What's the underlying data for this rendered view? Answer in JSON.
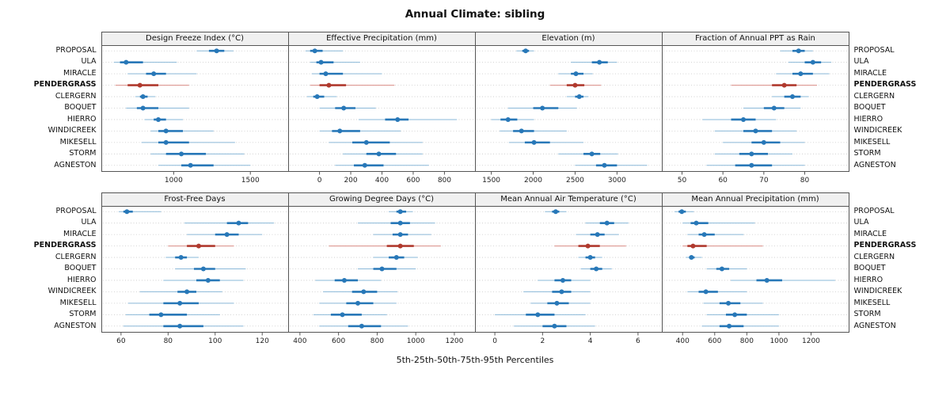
{
  "chart_data": {
    "type": "scatter",
    "subtype": "dotplot-percentile-intervals",
    "title": "Annual Climate: sibling",
    "caption": "5th-25th-50th-75th-95th Percentiles",
    "percentiles": [
      5,
      25,
      50,
      75,
      95
    ],
    "sites": [
      "PROPOSAL",
      "ULA",
      "MIRACLE",
      "PENDERGRASS",
      "CLERGERN",
      "BOQUET",
      "HIERRO",
      "WINDICREEK",
      "MIKESELL",
      "STORM",
      "AGNESTON"
    ],
    "highlighted_site": "PENDERGRASS",
    "layout": {
      "rows": 2,
      "cols": 4,
      "grid": "dotted-horizontal",
      "ylabels": "both-sides"
    },
    "colors": {
      "median_dot": "#2878b8",
      "iqr_line": "#2878b8",
      "range_line": "#8ab8d8",
      "highlight_dot": "#b03a2e",
      "highlight_iqr": "#b03a2e",
      "highlight_range": "#d98b84",
      "panel_border": "#555555",
      "strip_bg": "#f0f0f0",
      "gridline": "#c8c8c8"
    },
    "panels": [
      {
        "title": "Design Freeze Index (°C)",
        "row": 0,
        "xlim": [
          580,
          1700
        ],
        "ticks": [
          1000,
          1500
        ],
        "values": [
          [
            1150,
            1230,
            1280,
            1330,
            1390
          ],
          [
            610,
            650,
            690,
            800,
            1020
          ],
          [
            700,
            820,
            870,
            950,
            1150
          ],
          [
            620,
            700,
            780,
            900,
            1100
          ],
          [
            750,
            780,
            800,
            830,
            880
          ],
          [
            690,
            760,
            800,
            900,
            1100
          ],
          [
            810,
            870,
            900,
            950,
            1060
          ],
          [
            850,
            900,
            950,
            1060,
            1260
          ],
          [
            790,
            900,
            950,
            1100,
            1400
          ],
          [
            850,
            950,
            1050,
            1210,
            1460
          ],
          [
            900,
            1050,
            1110,
            1260,
            1500
          ]
        ]
      },
      {
        "title": "Effective Precipitation (mm)",
        "row": 0,
        "xlim": [
          -150,
          950
        ],
        "ticks": [
          0,
          200,
          400,
          600,
          800
        ],
        "values": [
          [
            -90,
            -60,
            -30,
            20,
            150
          ],
          [
            -60,
            -20,
            10,
            90,
            260
          ],
          [
            -50,
            0,
            40,
            150,
            400
          ],
          [
            -60,
            0,
            60,
            170,
            480
          ],
          [
            -80,
            -40,
            -15,
            30,
            110
          ],
          [
            0,
            100,
            155,
            230,
            360
          ],
          [
            250,
            420,
            500,
            570,
            880
          ],
          [
            0,
            80,
            130,
            260,
            520
          ],
          [
            60,
            210,
            300,
            450,
            660
          ],
          [
            150,
            300,
            380,
            490,
            660
          ],
          [
            100,
            220,
            290,
            410,
            700
          ]
        ]
      },
      {
        "title": "Elevation (m)",
        "row": 0,
        "xlim": [
          1400,
          3450
        ],
        "ticks": [
          1500,
          2000,
          2500,
          3000
        ],
        "values": [
          [
            1800,
            1870,
            1910,
            1950,
            2010
          ],
          [
            2450,
            2700,
            2790,
            2890,
            3000
          ],
          [
            2300,
            2450,
            2510,
            2600,
            2710
          ],
          [
            2200,
            2400,
            2500,
            2610,
            2810
          ],
          [
            2400,
            2500,
            2550,
            2600,
            2660
          ],
          [
            1700,
            2000,
            2110,
            2300,
            2520
          ],
          [
            1500,
            1610,
            1700,
            1810,
            2010
          ],
          [
            1600,
            1760,
            1860,
            2010,
            2400
          ],
          [
            1710,
            1900,
            2010,
            2200,
            2600
          ],
          [
            2300,
            2600,
            2700,
            2800,
            3010
          ],
          [
            2500,
            2750,
            2850,
            3000,
            3360
          ]
        ]
      },
      {
        "title": "Fraction of Annual PPT as Rain",
        "row": 0,
        "xlim": [
          47,
          89
        ],
        "ticks": [
          50,
          60,
          70,
          80
        ],
        "values": [
          [
            74,
            77,
            78.5,
            80,
            82
          ],
          [
            76,
            80,
            82,
            84,
            86.5
          ],
          [
            73,
            77,
            79,
            82,
            86
          ],
          [
            62,
            72,
            75,
            78,
            83
          ],
          [
            72,
            75,
            77,
            79,
            81
          ],
          [
            65,
            70,
            72.5,
            75,
            79
          ],
          [
            55,
            62,
            65,
            68,
            73
          ],
          [
            58,
            65,
            68,
            72,
            78
          ],
          [
            60,
            67,
            70,
            74,
            80
          ],
          [
            58,
            64,
            67,
            71,
            77
          ],
          [
            56,
            63,
            67,
            72,
            80
          ]
        ]
      },
      {
        "title": "Frost-Free Days",
        "row": 1,
        "xlim": [
          55,
          128
        ],
        "ticks": [
          60,
          80,
          100,
          120
        ],
        "values": [
          [
            59,
            61,
            62.5,
            65,
            77
          ],
          [
            87,
            105,
            110,
            114,
            125
          ],
          [
            88,
            100,
            105,
            110,
            120
          ],
          [
            80,
            88,
            93,
            100,
            108
          ],
          [
            79,
            83,
            85.5,
            88,
            93
          ],
          [
            83,
            91,
            95,
            100,
            113
          ],
          [
            78,
            92,
            97,
            102,
            112
          ],
          [
            68,
            84,
            88,
            92,
            103
          ],
          [
            63,
            78,
            85,
            93,
            108
          ],
          [
            62,
            72,
            77,
            88,
            102
          ],
          [
            61,
            78,
            85,
            95,
            112
          ]
        ]
      },
      {
        "title": "Growing Degree Days (°C)",
        "row": 1,
        "xlim": [
          380,
          1270
        ],
        "ticks": [
          400,
          600,
          800,
          1000,
          1200
        ],
        "values": [
          [
            860,
            900,
            920,
            950,
            985
          ],
          [
            700,
            870,
            920,
            970,
            1100
          ],
          [
            780,
            880,
            920,
            960,
            1080
          ],
          [
            550,
            850,
            920,
            990,
            1130
          ],
          [
            780,
            860,
            900,
            940,
            1010
          ],
          [
            700,
            780,
            825,
            900,
            1000
          ],
          [
            480,
            580,
            630,
            700,
            820
          ],
          [
            520,
            670,
            730,
            800,
            905
          ],
          [
            500,
            640,
            700,
            780,
            900
          ],
          [
            470,
            560,
            620,
            720,
            850
          ],
          [
            500,
            650,
            720,
            820,
            960
          ]
        ]
      },
      {
        "title": "Mean Annual Air Temperature (°C)",
        "row": 1,
        "xlim": [
          -0.5,
          6.7
        ],
        "ticks": [
          0,
          2,
          4,
          6
        ],
        "values": [
          [
            2.1,
            2.4,
            2.55,
            2.7,
            3.0
          ],
          [
            3.8,
            4.4,
            4.7,
            5.0,
            5.6
          ],
          [
            3.4,
            4.0,
            4.3,
            4.6,
            5.2
          ],
          [
            2.5,
            3.5,
            3.9,
            4.4,
            5.5
          ],
          [
            3.5,
            3.8,
            4.0,
            4.2,
            4.5
          ],
          [
            3.6,
            4.0,
            4.25,
            4.5,
            4.9
          ],
          [
            1.8,
            2.5,
            2.85,
            3.2,
            4.0
          ],
          [
            1.2,
            2.4,
            2.8,
            3.2,
            4.0
          ],
          [
            1.5,
            2.2,
            2.6,
            3.1,
            4.0
          ],
          [
            0.0,
            1.3,
            1.8,
            2.5,
            3.8
          ],
          [
            0.8,
            2.0,
            2.5,
            3.0,
            4.2
          ]
        ]
      },
      {
        "title": "Mean Annual Precipitation (mm)",
        "row": 1,
        "xlim": [
          320,
          1390
        ],
        "ticks": [
          400,
          600,
          800,
          1000,
          1200
        ],
        "values": [
          [
            350,
            375,
            395,
            420,
            470
          ],
          [
            400,
            450,
            485,
            560,
            850
          ],
          [
            430,
            500,
            535,
            600,
            780
          ],
          [
            400,
            430,
            465,
            550,
            900
          ],
          [
            420,
            440,
            455,
            475,
            520
          ],
          [
            550,
            610,
            645,
            690,
            800
          ],
          [
            700,
            860,
            925,
            1020,
            1350
          ],
          [
            430,
            500,
            545,
            620,
            800
          ],
          [
            530,
            630,
            685,
            760,
            900
          ],
          [
            550,
            670,
            725,
            800,
            1000
          ],
          [
            520,
            630,
            690,
            780,
            1000
          ]
        ]
      }
    ]
  }
}
